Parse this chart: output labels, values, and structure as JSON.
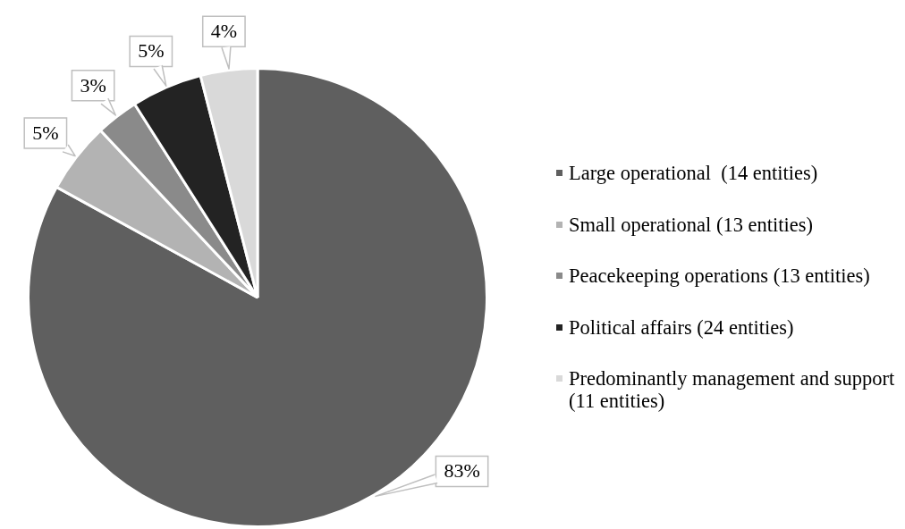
{
  "chart_data": {
    "type": "pie",
    "categories": [
      "Large operational  (14 entities)",
      "Small operational (13 entities)",
      "Peacekeeping operations (13 entities)",
      "Political affairs (24 entities)",
      "Predominantly management and support (11 entities)"
    ],
    "values": [
      83,
      5,
      3,
      5,
      4
    ],
    "colors": [
      "#5f5f5f",
      "#b3b3b3",
      "#8a8a8a",
      "#232323",
      "#d9d9d9"
    ],
    "value_labels": [
      "83%",
      "5%",
      "3%",
      "5%",
      "4%"
    ],
    "legend": "right"
  }
}
